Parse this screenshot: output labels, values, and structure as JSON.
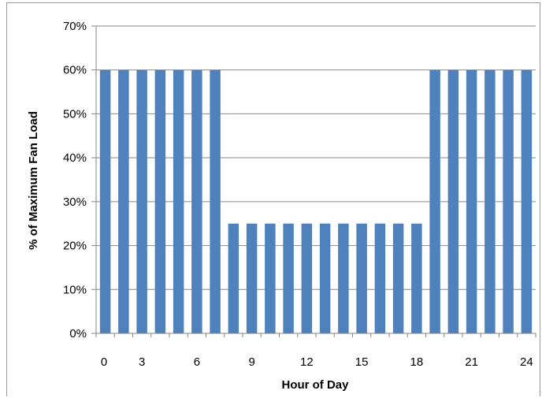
{
  "chart_data": {
    "type": "bar",
    "title": "",
    "xlabel": "Hour of Day",
    "ylabel": "% of Maximum Fan Load",
    "x": [
      1,
      2,
      3,
      4,
      5,
      6,
      7,
      8,
      9,
      10,
      11,
      12,
      13,
      14,
      15,
      16,
      17,
      18,
      19,
      20,
      21,
      22,
      23,
      24
    ],
    "values": [
      0.6,
      0.6,
      0.6,
      0.6,
      0.6,
      0.6,
      0.6,
      0.25,
      0.25,
      0.25,
      0.25,
      0.25,
      0.25,
      0.25,
      0.25,
      0.25,
      0.25,
      0.25,
      0.6,
      0.6,
      0.6,
      0.6,
      0.6,
      0.6
    ],
    "xlim": [
      0,
      24
    ],
    "ylim": [
      0,
      0.7
    ],
    "x_ticks": [
      "0",
      "3",
      "6",
      "9",
      "12",
      "15",
      "18",
      "21",
      "24"
    ],
    "y_ticks": [
      "0%",
      "10%",
      "20%",
      "30%",
      "40%",
      "50%",
      "60%",
      "70%"
    ],
    "grid": "horizontal",
    "legend": "none",
    "colors": {
      "bar": "#4f81bd",
      "grid": "#868686",
      "axis": "#868686"
    }
  }
}
